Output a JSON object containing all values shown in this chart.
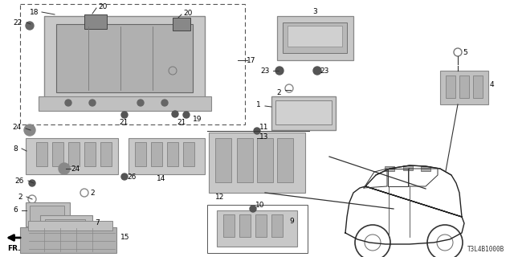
{
  "bg_color": "#ffffff",
  "diagram_code": "T3L4B1000B",
  "label_color": "#000000",
  "line_color": "#333333",
  "part_color": "#888888",
  "part_fill": "#dddddd"
}
